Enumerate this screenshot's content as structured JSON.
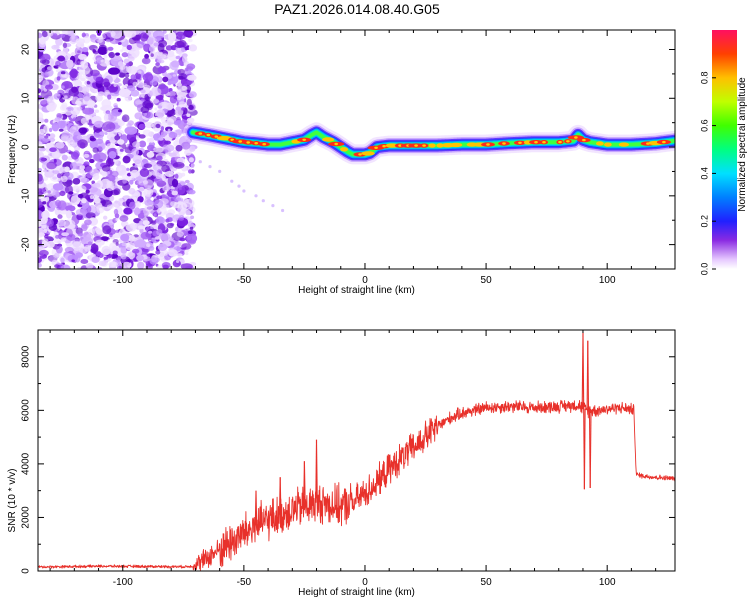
{
  "title": "PAZ1.2026.014.08.40.G05",
  "chart_data": [
    {
      "type": "heatmap",
      "name": "spectrogram",
      "xlabel": "Height of straight line (km)",
      "ylabel": "Frequency (Hz)",
      "xlim": [
        -135,
        128
      ],
      "ylim": [
        -25,
        24
      ],
      "x_ticks": [
        -100,
        -50,
        0,
        50,
        100
      ],
      "y_ticks": [
        20,
        10,
        0,
        -10,
        -20
      ],
      "noise_region_x": [
        -135,
        -71
      ],
      "ridge": {
        "x": [
          -71,
          -65,
          -60,
          -55,
          -50,
          -45,
          -40,
          -35,
          -30,
          -25,
          -22,
          -20,
          -17,
          -13,
          -10,
          -7,
          -5,
          -2,
          0,
          2,
          5,
          10,
          20,
          30,
          40,
          50,
          60,
          70,
          80,
          86,
          88,
          90,
          93,
          96,
          100,
          110,
          120,
          128
        ],
        "y": [
          3,
          2.5,
          2,
          1.5,
          1,
          0.8,
          0.5,
          0.5,
          1,
          1.5,
          2.5,
          3,
          2,
          1,
          0,
          -1,
          -1.5,
          -1.5,
          -1.5,
          -1.2,
          0,
          0.3,
          0.3,
          0.3,
          0.5,
          0.5,
          0.8,
          1,
          1,
          1.3,
          2.5,
          1.5,
          1,
          0.8,
          0.5,
          0.5,
          0.8,
          1.3
        ]
      },
      "stray_points": [
        [
          -68,
          -3
        ],
        [
          -64,
          -4
        ],
        [
          -60,
          -5
        ],
        [
          -55,
          -7
        ],
        [
          -52,
          -8
        ],
        [
          -50,
          -9
        ],
        [
          -45,
          -10
        ],
        [
          -42,
          -11
        ],
        [
          -38,
          -12
        ],
        [
          -34,
          -13
        ]
      ],
      "colorbar": {
        "label": "Normalized spectral amplitude",
        "range": [
          0,
          1
        ],
        "ticks": [
          "0.0",
          "0.2",
          "0.4",
          "0.6",
          "0.8"
        ],
        "tick_values": [
          0.0,
          0.2,
          0.4,
          0.6,
          0.8
        ]
      }
    },
    {
      "type": "line",
      "name": "snr",
      "xlabel": "Height of straight line (km)",
      "ylabel": "SNR (10 * v/v)",
      "xlim": [
        -135,
        128
      ],
      "ylim": [
        0,
        9000
      ],
      "x_ticks": [
        -100,
        -50,
        0,
        50,
        100
      ],
      "y_ticks": [
        0,
        2000,
        4000,
        6000,
        8000
      ],
      "color": "#e8312b",
      "trend": {
        "x": [
          -135,
          -110,
          -90,
          -75,
          -71,
          -68,
          -65,
          -60,
          -55,
          -50,
          -45,
          -40,
          -35,
          -30,
          -25,
          -20,
          -15,
          -10,
          -5,
          0,
          5,
          10,
          15,
          20,
          25,
          30,
          35,
          40,
          50,
          60,
          70,
          80,
          88,
          92,
          96,
          100,
          105,
          110,
          111,
          112,
          115,
          120,
          128
        ],
        "y": [
          150,
          180,
          170,
          160,
          180,
          300,
          500,
          800,
          1100,
          1400,
          1700,
          1900,
          2100,
          2300,
          2400,
          2550,
          2500,
          2400,
          2550,
          2900,
          3300,
          3800,
          4200,
          4600,
          5000,
          5400,
          5700,
          5900,
          6100,
          6150,
          6100,
          6150,
          6200,
          6000,
          6000,
          6050,
          6100,
          6050,
          6000,
          3600,
          3550,
          3500,
          3450
        ]
      },
      "spikes": [
        {
          "x": -20,
          "y": 4900
        },
        {
          "x": -25,
          "y": 4100
        },
        {
          "x": -35,
          "y": 3500
        },
        {
          "x": -45,
          "y": 3000
        },
        {
          "x": 90,
          "y": 8900
        },
        {
          "x": 90.6,
          "y": 3050
        },
        {
          "x": 92,
          "y": 8600
        },
        {
          "x": 93,
          "y": 3100
        }
      ]
    }
  ]
}
